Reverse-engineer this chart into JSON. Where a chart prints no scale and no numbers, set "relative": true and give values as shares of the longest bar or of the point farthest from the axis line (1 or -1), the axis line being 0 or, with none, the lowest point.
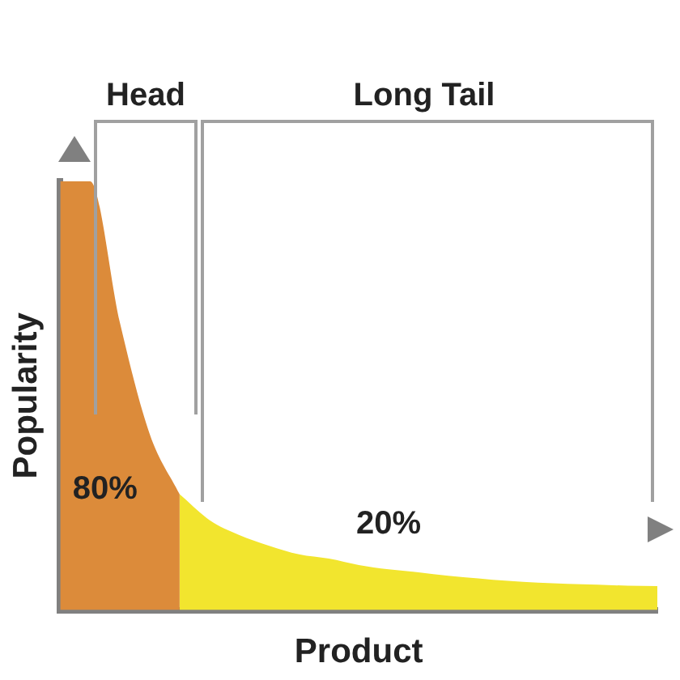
{
  "chart_data": {
    "type": "area",
    "relative": true,
    "xlabel": "Product",
    "ylabel": "Popularity",
    "categories": [
      null,
      null,
      null,
      null,
      null,
      null,
      null,
      null,
      null,
      null,
      null,
      null,
      null,
      null,
      null,
      null,
      null,
      null,
      null,
      null,
      null
    ],
    "series": [
      {
        "color": "#dc8b3a",
        "values": [
          1,
          1,
          0.67,
          0.41,
          0.27,
          null,
          null,
          null,
          null,
          null,
          null,
          null,
          null,
          null,
          null,
          null,
          null,
          null,
          null,
          null,
          null
        ]
      },
      {
        "color": "#f2e52e",
        "values": [
          null,
          null,
          null,
          null,
          0.27,
          0.21,
          0.175,
          0.15,
          0.13,
          0.12,
          0.105,
          0.095,
          0.088,
          0.08,
          0.074,
          0.068,
          0.064,
          0.061,
          0.059,
          0.057,
          0.056
        ]
      }
    ],
    "annotations": [
      "Head",
      "Long Tail",
      "80%",
      "20%"
    ],
    "grid": false,
    "legend": false
  }
}
